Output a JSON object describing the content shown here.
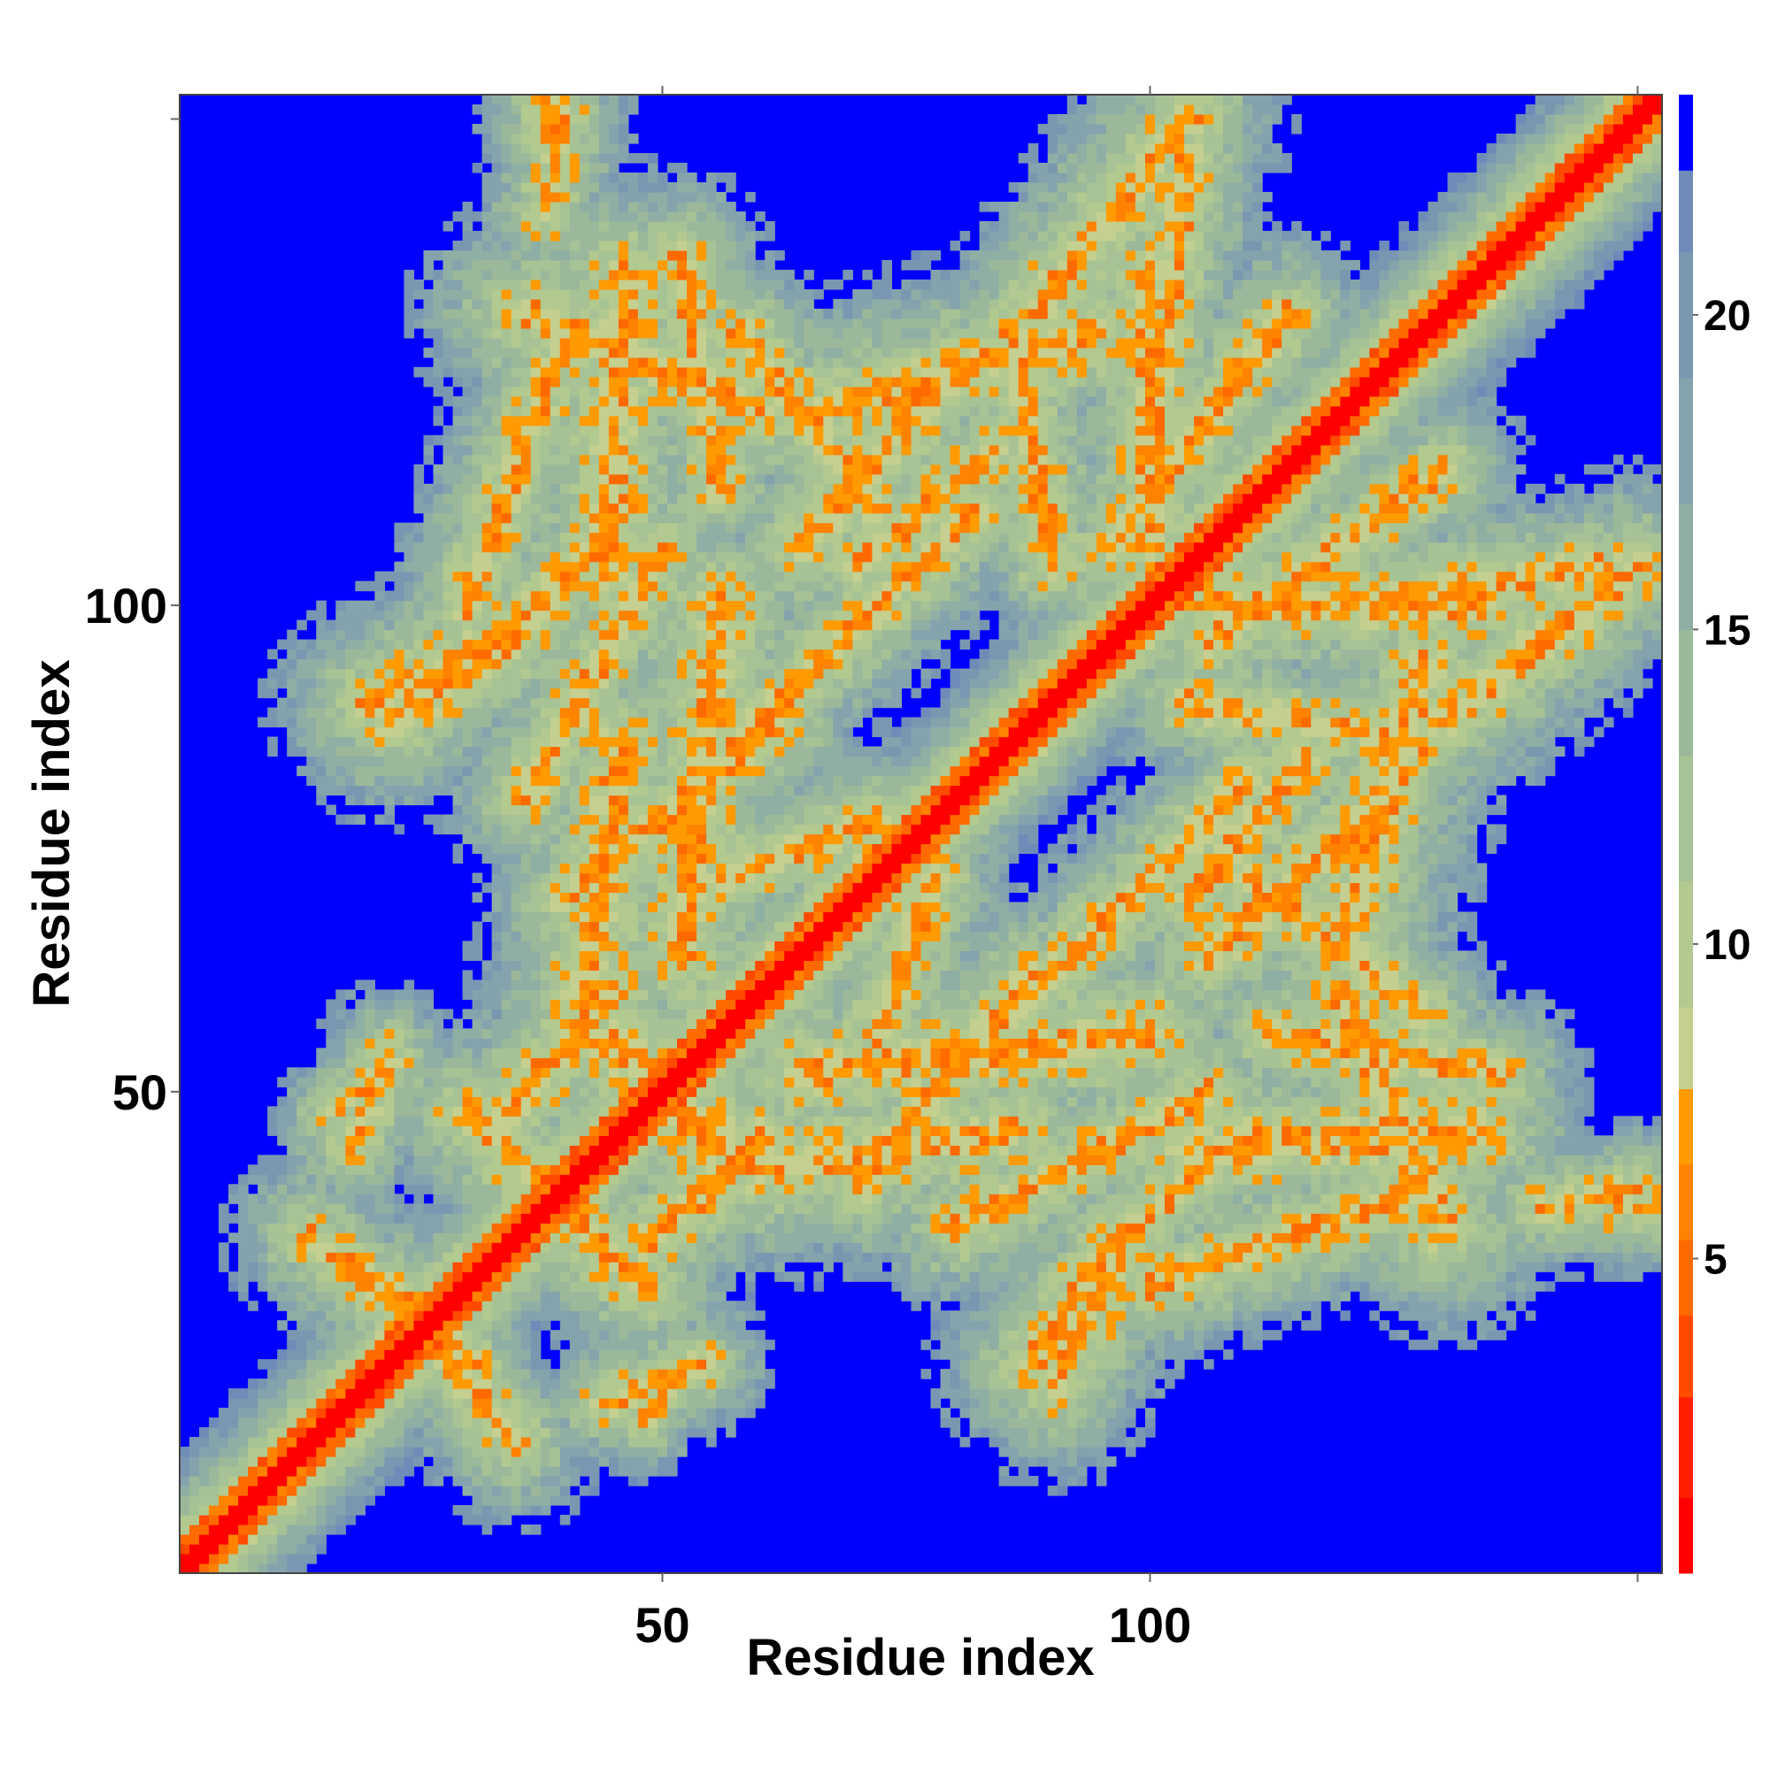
{
  "chart_data": {
    "type": "heatmap",
    "title": "",
    "xlabel": "Residue index",
    "ylabel": "Residue index",
    "xlim": [
      0.5,
      152.5
    ],
    "ylim": [
      0.5,
      152.5
    ],
    "x_ticks": [
      50,
      100
    ],
    "y_ticks": [
      50,
      100
    ],
    "colorbar": {
      "ticks": [
        5,
        10,
        15,
        20
      ],
      "range": [
        0,
        23.5
      ],
      "bands": [
        {
          "from": 0,
          "to": 1.2,
          "color": "#ff0000"
        },
        {
          "from": 1.2,
          "to": 2.8,
          "color": "#ff1e00"
        },
        {
          "from": 2.8,
          "to": 4.1,
          "color": "#ff4a00"
        },
        {
          "from": 4.1,
          "to": 5.3,
          "color": "#ff6a00"
        },
        {
          "from": 5.3,
          "to": 6.5,
          "color": "#ff8200"
        },
        {
          "from": 6.5,
          "to": 7.7,
          "color": "#ff9a00"
        },
        {
          "from": 7.7,
          "to": 9.0,
          "color": "#c5cf8f"
        },
        {
          "from": 9.0,
          "to": 11.0,
          "color": "#b2c98f"
        },
        {
          "from": 11.0,
          "to": 13.0,
          "color": "#a7c295"
        },
        {
          "from": 13.0,
          "to": 15.0,
          "color": "#9bb99a"
        },
        {
          "from": 15.0,
          "to": 17.0,
          "color": "#8fafa5"
        },
        {
          "from": 17.0,
          "to": 19.0,
          "color": "#84a3ad"
        },
        {
          "from": 19.0,
          "to": 21.0,
          "color": "#7a97b2"
        },
        {
          "from": 21.0,
          "to": 22.3,
          "color": "#6f8cb8"
        },
        {
          "from": 22.3,
          "to": 23.5,
          "color": "#0000ff"
        }
      ]
    },
    "background_value": 23.5,
    "n_residues": 152,
    "diagonal_width": 3,
    "contact_bands": [
      {
        "i1": 44,
        "j1": 55,
        "i2": 56,
        "j2": 45,
        "w": 4.0
      },
      {
        "i1": 30,
        "j1": 48,
        "i2": 40,
        "j2": 38,
        "w": 3.5
      },
      {
        "i1": 14,
        "j1": 35,
        "i2": 30,
        "j2": 22,
        "w": 3.0
      },
      {
        "i1": 48,
        "j1": 34,
        "i2": 60,
        "j2": 45,
        "w": 3.5
      },
      {
        "i1": 60,
        "j1": 42,
        "i2": 86,
        "j2": 46,
        "w": 4.0
      },
      {
        "i1": 64,
        "j1": 52,
        "i2": 100,
        "j2": 56,
        "w": 4.0
      },
      {
        "i1": 88,
        "j1": 22,
        "i2": 96,
        "j2": 34,
        "w": 3.5
      },
      {
        "i1": 96,
        "j1": 34,
        "i2": 110,
        "j2": 46,
        "w": 3.0
      },
      {
        "i1": 104,
        "j1": 44,
        "i2": 134,
        "j2": 46,
        "w": 4.0
      },
      {
        "i1": 112,
        "j1": 56,
        "i2": 136,
        "j2": 52,
        "w": 3.0
      },
      {
        "i1": 106,
        "j1": 64,
        "i2": 124,
        "j2": 80,
        "w": 3.5
      },
      {
        "i1": 104,
        "j1": 90,
        "i2": 128,
        "j2": 86,
        "w": 3.0
      },
      {
        "i1": 106,
        "j1": 100,
        "i2": 134,
        "j2": 100,
        "w": 3.5
      },
      {
        "i1": 118,
        "j1": 100,
        "i2": 146,
        "j2": 104,
        "w": 3.0
      },
      {
        "i1": 88,
        "j1": 130,
        "i2": 104,
        "j2": 150,
        "w": 3.5
      },
      {
        "i1": 66,
        "j1": 120,
        "i2": 94,
        "j2": 128,
        "w": 4.0
      },
      {
        "i1": 36,
        "j1": 130,
        "i2": 60,
        "j2": 120,
        "w": 4.0
      },
      {
        "i1": 30,
        "j1": 100,
        "i2": 40,
        "j2": 128,
        "w": 3.0
      },
      {
        "i1": 20,
        "j1": 90,
        "i2": 36,
        "j2": 98,
        "w": 3.5
      },
      {
        "i1": 36,
        "j1": 80,
        "i2": 50,
        "j2": 106,
        "w": 3.0
      },
      {
        "i1": 40,
        "j1": 70,
        "i2": 62,
        "j2": 88,
        "w": 3.0
      },
      {
        "i1": 56,
        "j1": 72,
        "i2": 72,
        "j2": 78,
        "w": 3.0
      },
      {
        "i1": 70,
        "j1": 104,
        "i2": 84,
        "j2": 116,
        "w": 3.0
      },
      {
        "i1": 110,
        "j1": 72,
        "i2": 128,
        "j2": 58,
        "w": 3.0
      },
      {
        "i1": 38,
        "j1": 140,
        "i2": 40,
        "j2": 150,
        "w": 2.5
      },
      {
        "i1": 148,
        "j1": 38,
        "i2": 156,
        "j2": 38,
        "w": 2.5
      },
      {
        "i1": 44,
        "j1": 18,
        "i2": 54,
        "j2": 22,
        "w": 2.5
      },
      {
        "i1": 16,
        "j1": 48,
        "i2": 22,
        "j2": 52,
        "w": 2.0
      },
      {
        "i1": 86,
        "j1": 58,
        "i2": 110,
        "j2": 82,
        "w": 3.0
      },
      {
        "i1": 96,
        "j1": 106,
        "i2": 114,
        "j2": 130,
        "w": 3.0
      }
    ]
  }
}
